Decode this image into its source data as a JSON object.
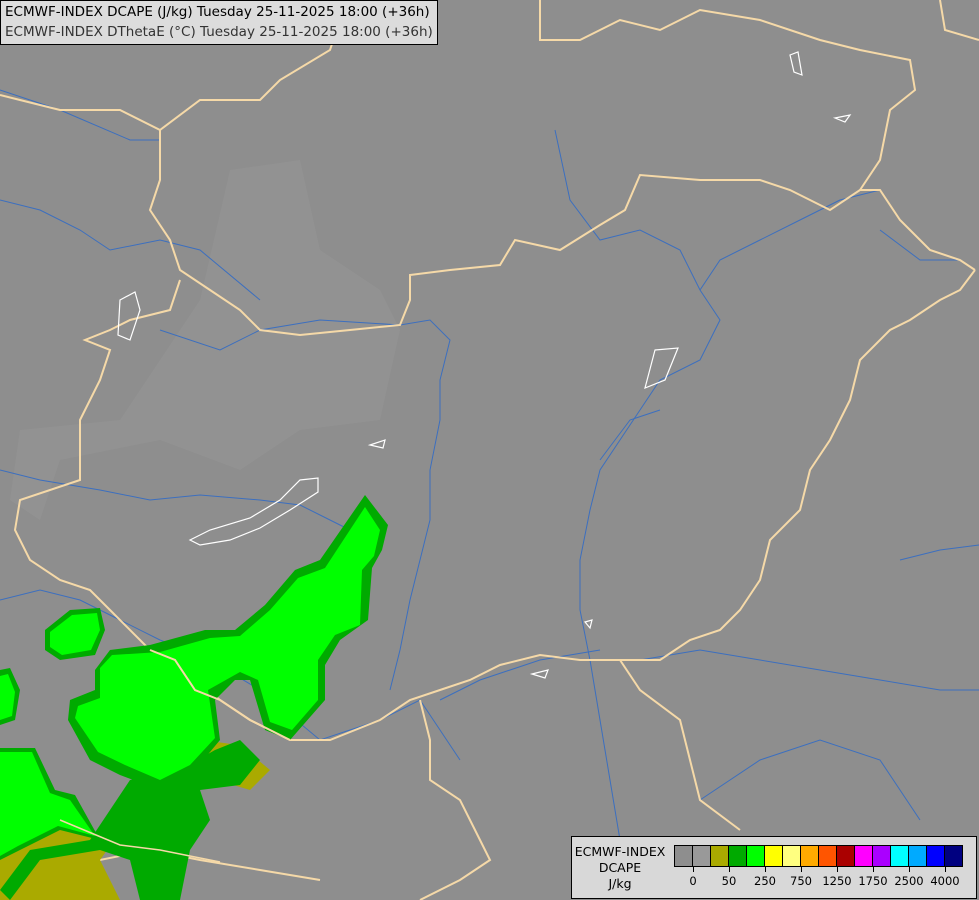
{
  "header": {
    "line1": "ECMWF-INDEX DCAPE (J/kg) Tuesday 25-11-2025 18:00 (+36h)",
    "line2": "ECMWF-INDEX DThetaE (°C) Tuesday 25-11-2025 18:00 (+36h)"
  },
  "legend": {
    "title": "ECMWF-INDEX",
    "variable": "DCAPE",
    "unit": "J/kg",
    "colors": [
      "#8e8e8e",
      "#999999",
      "#aaaa00",
      "#00aa00",
      "#00ff00",
      "#ffff00",
      "#ffff80",
      "#ffaa00",
      "#ff5500",
      "#aa0000",
      "#ff00ff",
      "#aa00ff",
      "#00ffff",
      "#00aaff",
      "#0000ff",
      "#000080"
    ],
    "tick_labels": [
      "0",
      "50",
      "250",
      "750",
      "1250",
      "1750",
      "2500",
      "4000"
    ]
  },
  "map_colors": {
    "background": "#8e8e8e",
    "borders": "#f5d9a8",
    "rivers": "#3c6fbf",
    "lakes": "#ffffff",
    "dcape_50_250": "#00aa00",
    "dcape_250_750": "#00ff00",
    "dcape_0_50": "#aaaa00"
  }
}
